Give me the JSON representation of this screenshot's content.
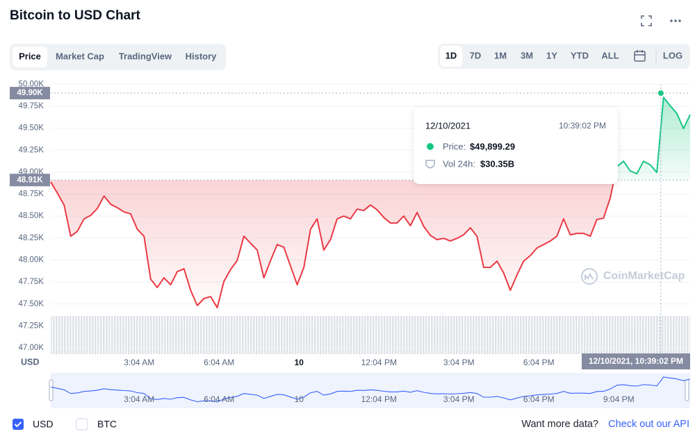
{
  "header": {
    "title": "Bitcoin to USD Chart"
  },
  "tabs": [
    "Price",
    "Market Cap",
    "TradingView",
    "History"
  ],
  "ranges": [
    "1D",
    "7D",
    "1M",
    "3M",
    "1Y",
    "YTD",
    "ALL"
  ],
  "scale_toggle": "LOG",
  "chart_data": {
    "type": "line",
    "y_label": "USD",
    "watermark": "CoinMarketCap",
    "x": [
      -0.25,
      0,
      0.25,
      0.5,
      0.75,
      1,
      1.25,
      1.5,
      1.75,
      2,
      2.25,
      2.5,
      2.75,
      3,
      3.25,
      3.5,
      3.75,
      4,
      4.25,
      4.5,
      4.75,
      5,
      5.25,
      5.5,
      5.75,
      6,
      6.25,
      6.5,
      6.75,
      7,
      7.25,
      7.5,
      7.75,
      8,
      8.25,
      8.5,
      8.75,
      9,
      9.25,
      9.5,
      9.75,
      10,
      10.25,
      10.5,
      10.75,
      11,
      11.25,
      11.5,
      11.75,
      12,
      12.25,
      12.5,
      12.75,
      13,
      13.25,
      13.5,
      13.75,
      14,
      14.25,
      14.5,
      14.75,
      15,
      15.25,
      15.5,
      15.75,
      16,
      16.25,
      16.5,
      16.75,
      17,
      17.25,
      17.5,
      17.75,
      18,
      18.25,
      18.5,
      18.75,
      19,
      19.25,
      19.5,
      19.75,
      20,
      20.25,
      20.5,
      20.75,
      21,
      21.25,
      21.5,
      21.75,
      22,
      22.25,
      22.5,
      22.75,
      23,
      23.25,
      23.5,
      23.75
    ],
    "values": [
      48887,
      48761,
      48626,
      48271,
      48326,
      48468,
      48508,
      48587,
      48729,
      48634,
      48595,
      48547,
      48524,
      48350,
      48271,
      47782,
      47687,
      47797,
      47718,
      47868,
      47900,
      47655,
      47482,
      47561,
      47584,
      47458,
      47758,
      47892,
      47995,
      48271,
      48192,
      48113,
      47797,
      47995,
      48176,
      48145,
      47932,
      47718,
      47916,
      48350,
      48468,
      48113,
      48232,
      48468,
      48500,
      48468,
      48579,
      48563,
      48626,
      48571,
      48484,
      48421,
      48421,
      48500,
      48390,
      48540,
      48382,
      48279,
      48232,
      48247,
      48216,
      48247,
      48287,
      48366,
      48271,
      47916,
      47916,
      47987,
      47853,
      47655,
      47829,
      47987,
      48050,
      48137,
      48176,
      48216,
      48271,
      48468,
      48287,
      48303,
      48303,
      48271,
      48461,
      48476,
      48705,
      49061,
      49124,
      49013,
      48982,
      49124,
      49084,
      48997,
      49850,
      49755,
      49669,
      49495,
      49653
    ],
    "up_color": "#16c784",
    "down_color": "#ea3943",
    "xlim": [
      -0.25,
      23.75
    ],
    "ylim": [
      46850,
      50050
    ],
    "xticks": [
      {
        "value": 3.07,
        "label": "3:04 AM"
      },
      {
        "value": 6.07,
        "label": "6:04 AM"
      },
      {
        "value": 9.07,
        "label": "10"
      },
      {
        "value": 12.07,
        "label": "12:04 PM"
      },
      {
        "value": 15.07,
        "label": "3:04 PM"
      },
      {
        "value": 18.07,
        "label": "6:04 PM"
      }
    ],
    "navigator_xticks": [
      {
        "value": 3.07,
        "label": "3:04 AM"
      },
      {
        "value": 6.07,
        "label": "6:04 AM"
      },
      {
        "value": 9.07,
        "label": "10"
      },
      {
        "value": 12.07,
        "label": "12:04 PM"
      },
      {
        "value": 15.07,
        "label": "3:04 PM"
      },
      {
        "value": 18.07,
        "label": "6:04 PM"
      },
      {
        "value": 21.07,
        "label": "9:04 PM"
      }
    ],
    "yticks": [
      {
        "value": 47000,
        "label": "47.00K"
      },
      {
        "value": 47250,
        "label": "47.25K"
      },
      {
        "value": 47500,
        "label": "47.50K"
      },
      {
        "value": 47750,
        "label": "47.75K"
      },
      {
        "value": 48000,
        "label": "48.00K"
      },
      {
        "value": 48250,
        "label": "48.25K"
      },
      {
        "value": 48500,
        "label": "48.50K"
      },
      {
        "value": 48750,
        "label": "48.75K"
      },
      {
        "value": 49000,
        "label": "49.00K"
      },
      {
        "value": 49250,
        "label": "49.25K"
      },
      {
        "value": 49500,
        "label": "49.50K"
      },
      {
        "value": 49750,
        "label": "49.75K"
      },
      {
        "value": 50000,
        "label": "50.00K"
      }
    ],
    "grid": true,
    "baseline": {
      "value": 48910,
      "label": "48.91K"
    },
    "current": {
      "value": 49899.29,
      "label": "49.90K",
      "x": 22.65,
      "x_label": "12/10/2021, 10:39:02 PM"
    },
    "tooltip": {
      "date": "12/10/2021",
      "time": "10:39:02 PM",
      "price_label": "Price:",
      "price": "$49,899.29",
      "volume_label": "Vol 24h:",
      "volume": "$30.35B"
    }
  },
  "footer": {
    "currencies": [
      "USD",
      "BTC"
    ],
    "prompt": "Want more data?",
    "link": "Check out our API"
  }
}
